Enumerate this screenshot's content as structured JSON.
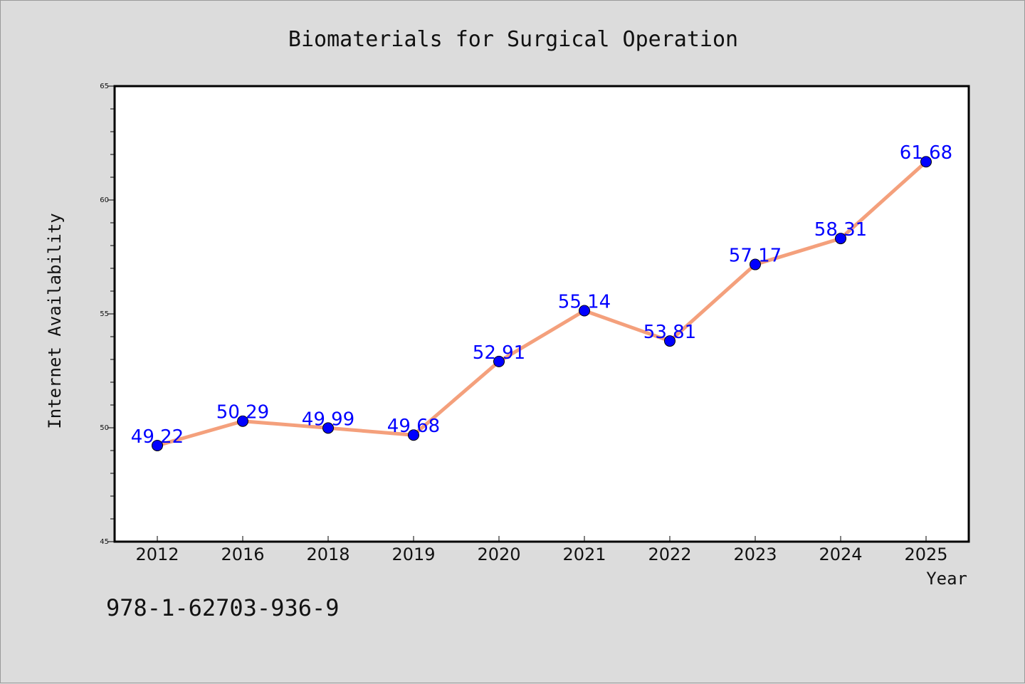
{
  "chart_data": {
    "type": "line",
    "title": "Biomaterials for Surgical Operation",
    "xlabel": "Year",
    "ylabel": "Internet Availability",
    "categories": [
      "2012",
      "2016",
      "2018",
      "2019",
      "2020",
      "2021",
      "2022",
      "2023",
      "2024",
      "2025"
    ],
    "series": [
      {
        "values": [
          49.22,
          50.29,
          49.99,
          49.68,
          52.91,
          55.14,
          53.81,
          57.17,
          58.31,
          61.68
        ],
        "line_color": "#f4a07c",
        "marker_color": "#0000ff"
      }
    ],
    "data_labels": [
      "49.22",
      "50.29",
      "49.99",
      "49.68",
      "52.91",
      "55.14",
      "53.81",
      "57.17",
      "58.31",
      "61.68"
    ],
    "ylim": [
      45,
      65
    ],
    "yticks": [
      "45",
      "50",
      "55",
      "60",
      "65"
    ],
    "grid": false,
    "legend": "none",
    "label_color": "#0000ff"
  },
  "footer": {
    "isbn": "978-1-62703-936-9"
  }
}
